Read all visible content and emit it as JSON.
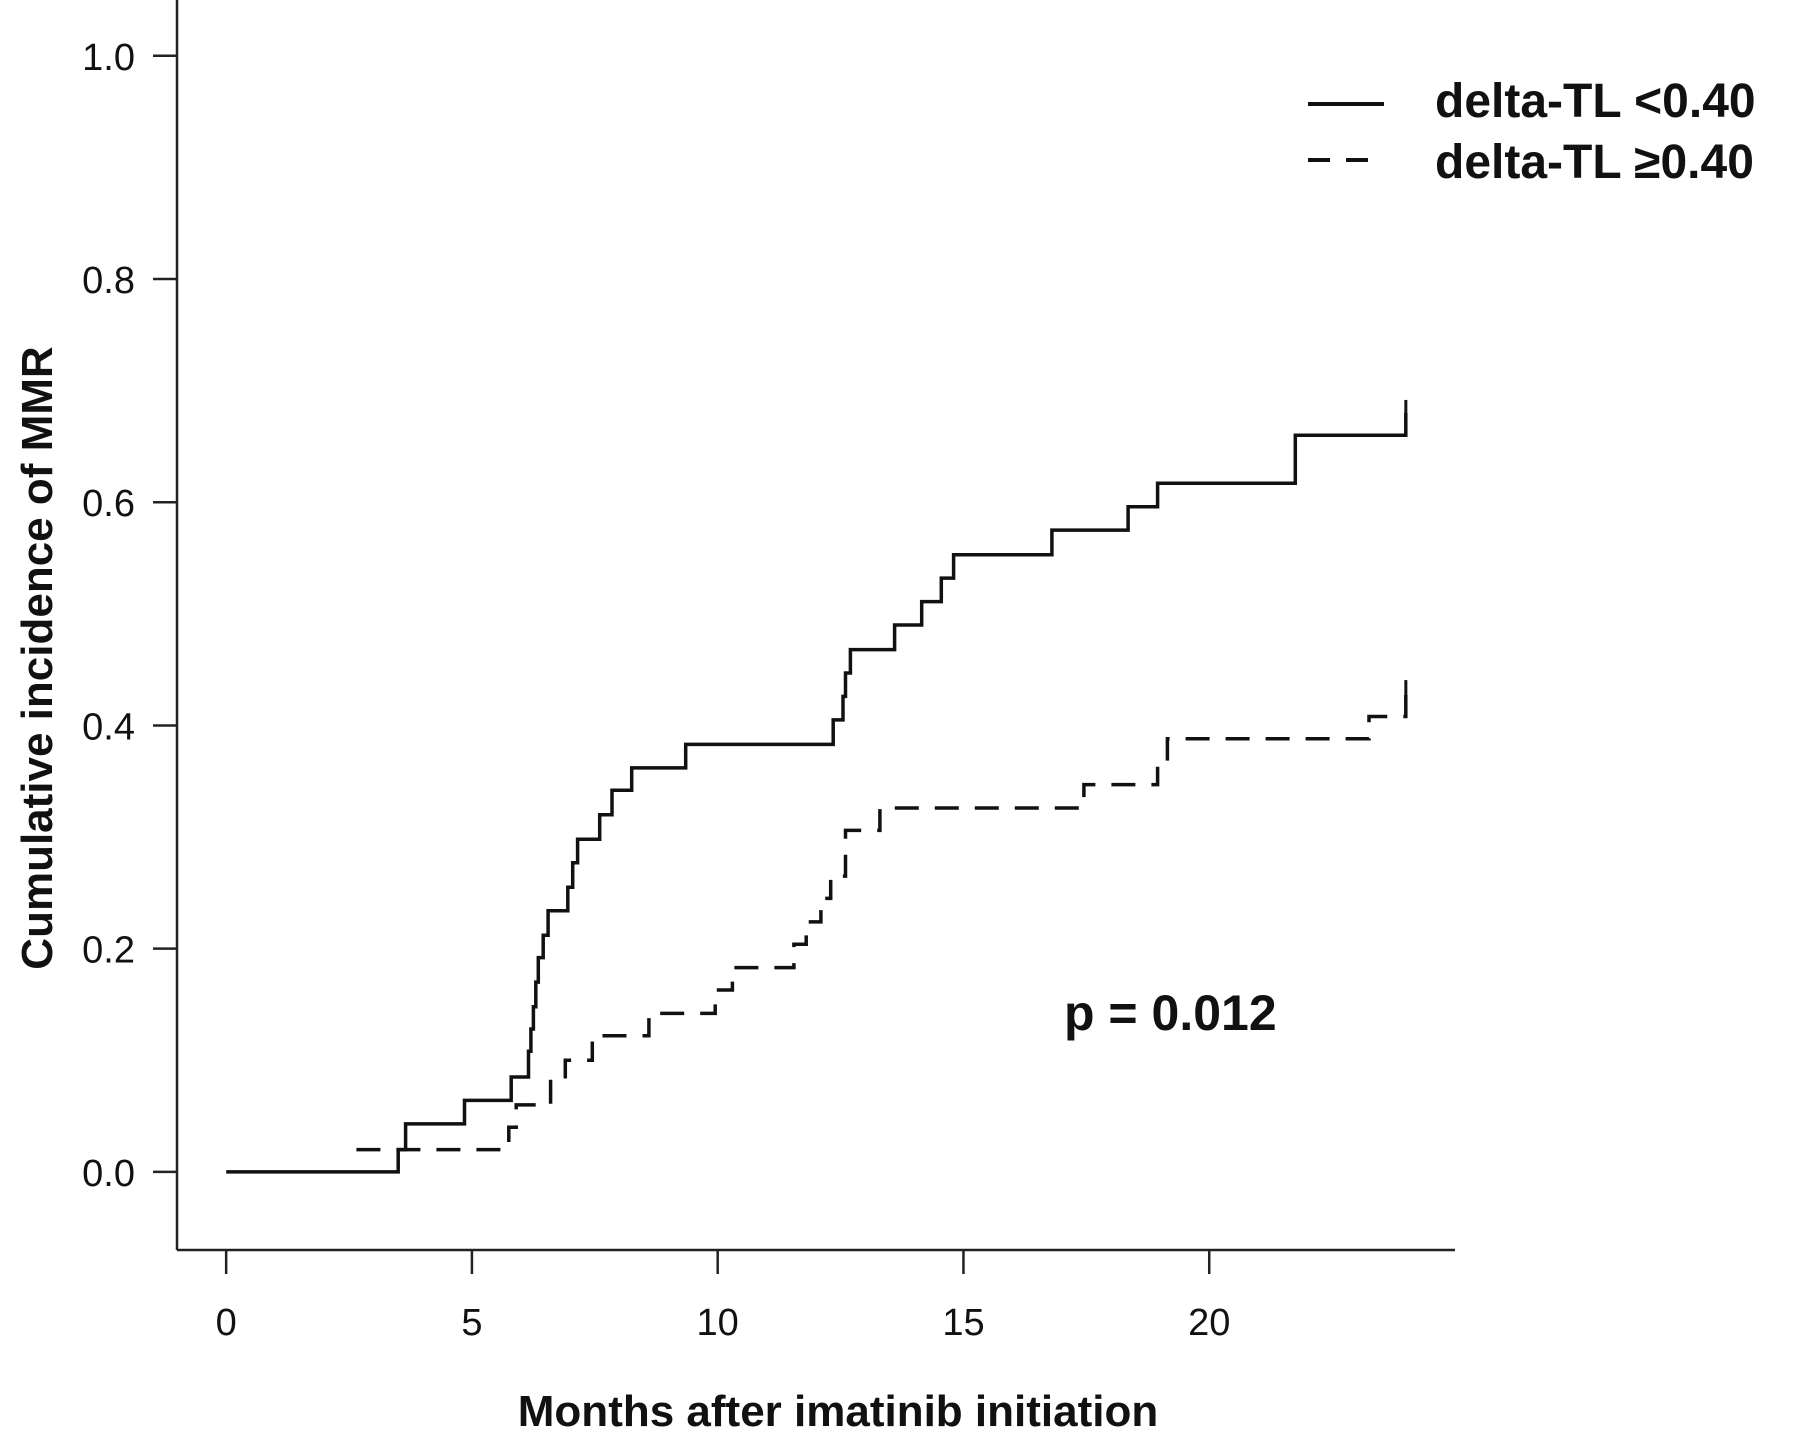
{
  "chart_data": {
    "type": "line",
    "xlabel": "Months after imatinib initiation",
    "ylabel": "Cumulative incidence of MMR",
    "xlim": [
      -1,
      25
    ],
    "ylim": [
      -0.07,
      1.05
    ],
    "xticks": [
      "0",
      "5",
      "10",
      "15",
      "20"
    ],
    "xtick_values": [
      0,
      5,
      10,
      15,
      20
    ],
    "yticks": [
      "0.0",
      "0.2",
      "0.4",
      "0.6",
      "0.8",
      "1.0"
    ],
    "ytick_values": [
      0.0,
      0.2,
      0.4,
      0.6,
      0.8,
      1.0
    ],
    "grid": false,
    "legend_position": "top-right",
    "annotation": "p = 0.012",
    "series": [
      {
        "name": "delta-TL <0.40",
        "style": "solid",
        "color": "#111111",
        "censor_at": 24,
        "x": [
          0,
          3.5,
          3.65,
          4.85,
          5.8,
          6.05,
          6.15,
          6.2,
          6.25,
          6.3,
          6.35,
          6.45,
          6.55,
          6.6,
          6.95,
          7.05,
          7.15,
          7.55,
          7.6,
          7.85,
          8.25,
          9.35,
          12.35,
          12.55,
          12.6,
          12.7,
          13.35,
          13.6,
          13.95,
          14.15,
          14.55,
          14.8,
          16.8,
          18.35,
          18.95,
          21.75,
          24
        ],
        "y": [
          0,
          0.02,
          0.043,
          0.064,
          0.085,
          0.085,
          0.108,
          0.128,
          0.148,
          0.17,
          0.192,
          0.212,
          0.234,
          0.234,
          0.255,
          0.277,
          0.298,
          0.298,
          0.32,
          0.342,
          0.362,
          0.383,
          0.405,
          0.426,
          0.447,
          0.468,
          0.468,
          0.49,
          0.49,
          0.511,
          0.532,
          0.553,
          0.575,
          0.596,
          0.617,
          0.66,
          0.68
        ]
      },
      {
        "name": "delta-TL ≥0.40",
        "style": "dashed",
        "color": "#111111",
        "censor_at": 24,
        "x": [
          2.65,
          3.55,
          5.55,
          5.75,
          5.9,
          6.6,
          6.9,
          7.45,
          8.6,
          9.95,
          10.3,
          11.55,
          11.8,
          12.1,
          12.3,
          12.6,
          13.3,
          17.45,
          18.95,
          19.15,
          23.25,
          24
        ],
        "y": [
          0.02,
          0.02,
          0.02,
          0.04,
          0.06,
          0.081,
          0.1,
          0.122,
          0.142,
          0.163,
          0.183,
          0.204,
          0.224,
          0.245,
          0.265,
          0.306,
          0.326,
          0.347,
          0.367,
          0.388,
          0.408,
          0.429
        ]
      }
    ]
  }
}
